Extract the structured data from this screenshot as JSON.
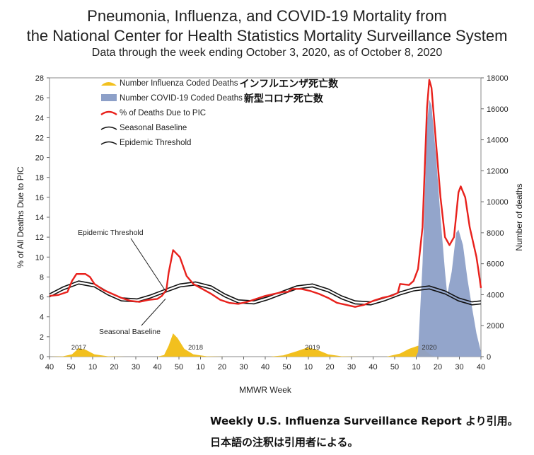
{
  "title_line1": "Pneumonia, Influenza, and COVID-19 Mortality from",
  "title_line2": "the National Center for Health Statistics Mortality Surveillance System",
  "subtitle": "Data through the week ending October 3, 2020, as of October 8, 2020",
  "citation_line1": "Weekly U.S. Influenza Surveillance Report より引用。",
  "citation_line2": "日本語の注釈は引用者による。",
  "colors": {
    "pic": "#e8211c",
    "influenza": "#f2c01e",
    "covid": "#8da0c8",
    "baseline": "#111111"
  },
  "chart_data": {
    "type": "line",
    "xlabel": "MMWR Week",
    "ylabel_left": "% of All Deaths Due to PIC",
    "ylabel_right": "Number of deaths",
    "ylim_left": [
      0,
      28
    ],
    "ylim_right": [
      0,
      18000
    ],
    "yticks_left": [
      "0",
      "2",
      "4",
      "6",
      "8",
      "10",
      "12",
      "14",
      "16",
      "18",
      "20",
      "22",
      "24",
      "26",
      "28"
    ],
    "yticks_right": [
      "0",
      "2000",
      "4000",
      "6000",
      "8000",
      "10000",
      "12000",
      "14000",
      "16000",
      "18000"
    ],
    "xticks": [
      "40",
      "50",
      "10",
      "20",
      "30",
      "40",
      "50",
      "10",
      "20",
      "30",
      "40",
      "50",
      "10",
      "20",
      "30",
      "40",
      "50",
      "10",
      "20",
      "30",
      "40"
    ],
    "season_labels": [
      {
        "label": "2017",
        "week_index": 13
      },
      {
        "label": "2018",
        "week_index": 65
      },
      {
        "label": "2019",
        "week_index": 117
      },
      {
        "label": "2020",
        "week_index": 169
      }
    ],
    "legend": [
      {
        "label": "Number Influenza Coded Deaths",
        "jp": "インフルエンザ死亡数",
        "kind": "area-yellow"
      },
      {
        "label": "Number COVID-19 Coded Deaths",
        "jp": "新型コロナ死亡数",
        "kind": "area-blue"
      },
      {
        "label": "% of Deaths Due to PIC",
        "jp": "",
        "kind": "line-red"
      },
      {
        "label": "Seasonal Baseline",
        "jp": "",
        "kind": "line-black"
      },
      {
        "label": "Epidemic Threshold",
        "jp": "",
        "kind": "line-black"
      }
    ],
    "annotations": [
      {
        "label": "Epidemic Threshold"
      },
      {
        "label": "Seasonal Baseline"
      }
    ],
    "series": [
      {
        "name": "% of Deaths Due to PIC",
        "axis": "left",
        "points": [
          [
            0,
            6.1
          ],
          [
            4,
            6.2
          ],
          [
            8,
            6.5
          ],
          [
            10,
            7.6
          ],
          [
            12,
            8.3
          ],
          [
            16,
            8.3
          ],
          [
            18,
            8.0
          ],
          [
            20,
            7.3
          ],
          [
            24,
            6.7
          ],
          [
            28,
            6.3
          ],
          [
            32,
            5.9
          ],
          [
            36,
            5.6
          ],
          [
            40,
            5.5
          ],
          [
            44,
            5.7
          ],
          [
            48,
            5.8
          ],
          [
            50,
            6.1
          ],
          [
            52,
            6.7
          ],
          [
            53,
            8.4
          ],
          [
            55,
            10.7
          ],
          [
            58,
            10.0
          ],
          [
            61,
            8.1
          ],
          [
            64,
            7.3
          ],
          [
            68,
            6.8
          ],
          [
            72,
            6.3
          ],
          [
            76,
            5.7
          ],
          [
            80,
            5.4
          ],
          [
            84,
            5.3
          ],
          [
            88,
            5.5
          ],
          [
            92,
            5.8
          ],
          [
            96,
            6.1
          ],
          [
            100,
            6.3
          ],
          [
            104,
            6.5
          ],
          [
            106,
            6.5
          ],
          [
            108,
            6.8
          ],
          [
            112,
            6.8
          ],
          [
            116,
            6.6
          ],
          [
            120,
            6.3
          ],
          [
            124,
            5.9
          ],
          [
            128,
            5.4
          ],
          [
            132,
            5.2
          ],
          [
            136,
            5.0
          ],
          [
            140,
            5.2
          ],
          [
            144,
            5.6
          ],
          [
            148,
            5.9
          ],
          [
            152,
            6.1
          ],
          [
            155,
            6.4
          ],
          [
            156,
            7.3
          ],
          [
            160,
            7.2
          ],
          [
            162,
            7.6
          ],
          [
            164,
            8.8
          ],
          [
            166,
            13.0
          ],
          [
            168,
            25.0
          ],
          [
            169,
            27.8
          ],
          [
            170,
            27.0
          ],
          [
            172,
            21.5
          ],
          [
            174,
            16.0
          ],
          [
            176,
            12.0
          ],
          [
            178,
            11.2
          ],
          [
            180,
            12.0
          ],
          [
            182,
            16.5
          ],
          [
            183,
            17.1
          ],
          [
            185,
            16.0
          ],
          [
            187,
            13.0
          ],
          [
            190,
            10.0
          ],
          [
            191,
            8.5
          ],
          [
            192,
            6.9
          ]
        ]
      },
      {
        "name": "Seasonal Baseline",
        "axis": "left",
        "points": [
          [
            0,
            6.0
          ],
          [
            6,
            6.7
          ],
          [
            13,
            7.3
          ],
          [
            20,
            7.0
          ],
          [
            26,
            6.2
          ],
          [
            32,
            5.6
          ],
          [
            39,
            5.5
          ],
          [
            45,
            5.9
          ],
          [
            52,
            6.5
          ],
          [
            58,
            7.0
          ],
          [
            65,
            7.2
          ],
          [
            72,
            6.8
          ],
          [
            78,
            6.0
          ],
          [
            84,
            5.4
          ],
          [
            91,
            5.3
          ],
          [
            97,
            5.7
          ],
          [
            104,
            6.3
          ],
          [
            110,
            6.8
          ],
          [
            117,
            7.0
          ],
          [
            124,
            6.5
          ],
          [
            130,
            5.8
          ],
          [
            136,
            5.3
          ],
          [
            143,
            5.2
          ],
          [
            149,
            5.6
          ],
          [
            156,
            6.2
          ],
          [
            162,
            6.6
          ],
          [
            169,
            6.8
          ],
          [
            176,
            6.3
          ],
          [
            182,
            5.6
          ],
          [
            188,
            5.2
          ],
          [
            192,
            5.3
          ]
        ]
      },
      {
        "name": "Epidemic Threshold",
        "axis": "left",
        "points": [
          [
            0,
            6.3
          ],
          [
            6,
            7.0
          ],
          [
            13,
            7.6
          ],
          [
            20,
            7.3
          ],
          [
            26,
            6.5
          ],
          [
            32,
            5.9
          ],
          [
            39,
            5.8
          ],
          [
            45,
            6.2
          ],
          [
            52,
            6.8
          ],
          [
            58,
            7.3
          ],
          [
            65,
            7.5
          ],
          [
            72,
            7.1
          ],
          [
            78,
            6.3
          ],
          [
            84,
            5.7
          ],
          [
            91,
            5.6
          ],
          [
            97,
            6.0
          ],
          [
            104,
            6.6
          ],
          [
            110,
            7.1
          ],
          [
            117,
            7.3
          ],
          [
            124,
            6.8
          ],
          [
            130,
            6.1
          ],
          [
            136,
            5.6
          ],
          [
            143,
            5.5
          ],
          [
            149,
            5.9
          ],
          [
            156,
            6.5
          ],
          [
            162,
            6.9
          ],
          [
            169,
            7.1
          ],
          [
            176,
            6.6
          ],
          [
            182,
            5.9
          ],
          [
            188,
            5.5
          ],
          [
            192,
            5.6
          ]
        ]
      },
      {
        "name": "Number Influenza Coded Deaths",
        "axis": "right",
        "type": "area",
        "points": [
          [
            0,
            0
          ],
          [
            6,
            20
          ],
          [
            10,
            150
          ],
          [
            13,
            550
          ],
          [
            16,
            450
          ],
          [
            20,
            150
          ],
          [
            26,
            20
          ],
          [
            34,
            0
          ],
          [
            48,
            0
          ],
          [
            51,
            100
          ],
          [
            53,
            700
          ],
          [
            55,
            1500
          ],
          [
            57,
            1200
          ],
          [
            60,
            500
          ],
          [
            64,
            150
          ],
          [
            70,
            20
          ],
          [
            78,
            0
          ],
          [
            98,
            0
          ],
          [
            104,
            80
          ],
          [
            110,
            350
          ],
          [
            115,
            600
          ],
          [
            119,
            450
          ],
          [
            124,
            150
          ],
          [
            130,
            20
          ],
          [
            138,
            0
          ],
          [
            150,
            0
          ],
          [
            156,
            200
          ],
          [
            160,
            500
          ],
          [
            164,
            700
          ],
          [
            166,
            550
          ],
          [
            168,
            300
          ],
          [
            170,
            80
          ],
          [
            172,
            0
          ],
          [
            192,
            0
          ]
        ]
      },
      {
        "name": "Number COVID-19 Coded Deaths",
        "axis": "right",
        "type": "area",
        "points": [
          [
            163,
            0
          ],
          [
            164,
            300
          ],
          [
            166,
            6000
          ],
          [
            168,
            15000
          ],
          [
            169,
            16600
          ],
          [
            170,
            16200
          ],
          [
            172,
            13000
          ],
          [
            174,
            9000
          ],
          [
            176,
            5500
          ],
          [
            177,
            4000
          ],
          [
            179,
            5500
          ],
          [
            181,
            8000
          ],
          [
            182,
            8200
          ],
          [
            184,
            7200
          ],
          [
            186,
            5000
          ],
          [
            188,
            3200
          ],
          [
            190,
            1500
          ],
          [
            192,
            300
          ]
        ]
      }
    ]
  }
}
